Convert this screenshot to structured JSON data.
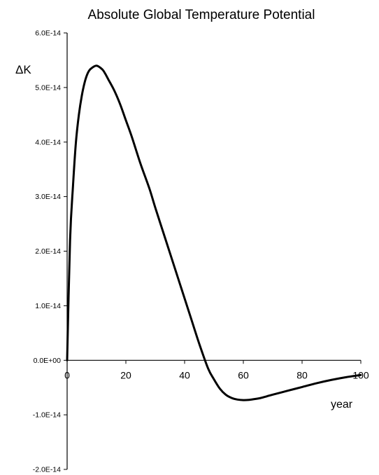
{
  "chart_data": {
    "type": "line",
    "title": "Absolute Global Temperature Potential",
    "xlabel": "year",
    "ylabel": "ΔK",
    "xlim": [
      0,
      100
    ],
    "ylim": [
      -2e-14,
      6e-14
    ],
    "grid": false,
    "legend": "none",
    "x_ticks": [
      0,
      20,
      40,
      60,
      80,
      100
    ],
    "x_tick_labels": [
      "0",
      "20",
      "40",
      "60",
      "80",
      "100"
    ],
    "y_ticks": [
      6e-14,
      5e-14,
      4e-14,
      3e-14,
      2e-14,
      1e-14,
      0,
      -1e-14,
      -2e-14
    ],
    "y_tick_labels": [
      "6.0E-14",
      "5.0E-14",
      "4.0E-14",
      "3.0E-14",
      "2.0E-14",
      "1.0E-14",
      "0.0E+00",
      "-1.0E-14",
      "-2.0E-14"
    ],
    "line_color": "#000000",
    "series": [
      {
        "x": [
          0,
          1,
          2,
          3,
          4,
          5,
          6,
          7,
          8,
          10,
          12,
          13,
          14,
          16,
          18,
          20,
          22,
          25,
          28,
          30,
          33,
          36,
          39,
          42,
          45,
          48,
          50,
          52,
          54,
          56,
          58,
          60,
          62,
          64,
          66,
          68,
          70,
          75,
          80,
          85,
          90,
          95,
          100
        ],
        "y": [
          0,
          2.2e-14,
          3.2e-14,
          4e-14,
          4.5e-14,
          4.85e-14,
          5.1e-14,
          5.26e-14,
          5.34e-14,
          5.4e-14,
          5.33e-14,
          5.25e-14,
          5.15e-14,
          4.95e-14,
          4.7e-14,
          4.4e-14,
          4.1e-14,
          3.6e-14,
          3.15e-14,
          2.8e-14,
          2.3e-14,
          1.8e-14,
          1.3e-14,
          8e-15,
          3e-15,
          -1.5e-15,
          -3.5e-15,
          -5.2e-15,
          -6.3e-15,
          -6.9e-15,
          -7.2e-15,
          -7.3e-15,
          -7.25e-15,
          -7.1e-15,
          -6.9e-15,
          -6.6e-15,
          -6.3e-15,
          -5.6e-15,
          -4.9e-15,
          -4.2e-15,
          -3.6e-15,
          -3.1e-15,
          -2.7e-15
        ]
      }
    ]
  }
}
